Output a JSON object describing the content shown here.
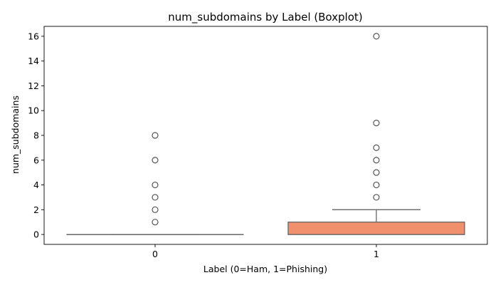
{
  "chart_data": {
    "type": "boxplot",
    "title": "num_subdomains by Label (Boxplot)",
    "xlabel": "Label (0=Ham, 1=Phishing)",
    "ylabel": "num_subdomains",
    "categories": [
      "0",
      "1"
    ],
    "ylim": [
      -0.8,
      16.8
    ],
    "yticks": [
      0,
      2,
      4,
      6,
      8,
      10,
      12,
      14,
      16
    ],
    "grid": false,
    "boxes": [
      {
        "category": "0",
        "q1": 0,
        "median": 0,
        "q3": 0,
        "whisker_low": 0,
        "whisker_high": 0,
        "outliers": [
          1,
          2,
          3,
          4,
          6,
          8
        ],
        "color": "#8c9fca"
      },
      {
        "category": "1",
        "q1": 0,
        "median": 0,
        "q3": 1,
        "whisker_low": 0,
        "whisker_high": 2,
        "outliers": [
          3,
          4,
          5,
          6,
          7,
          9,
          16
        ],
        "color": "#f0906c"
      }
    ]
  },
  "colors": {
    "box_edge": "#666666",
    "outlier_edge": "#555555",
    "axis": "#000000"
  }
}
